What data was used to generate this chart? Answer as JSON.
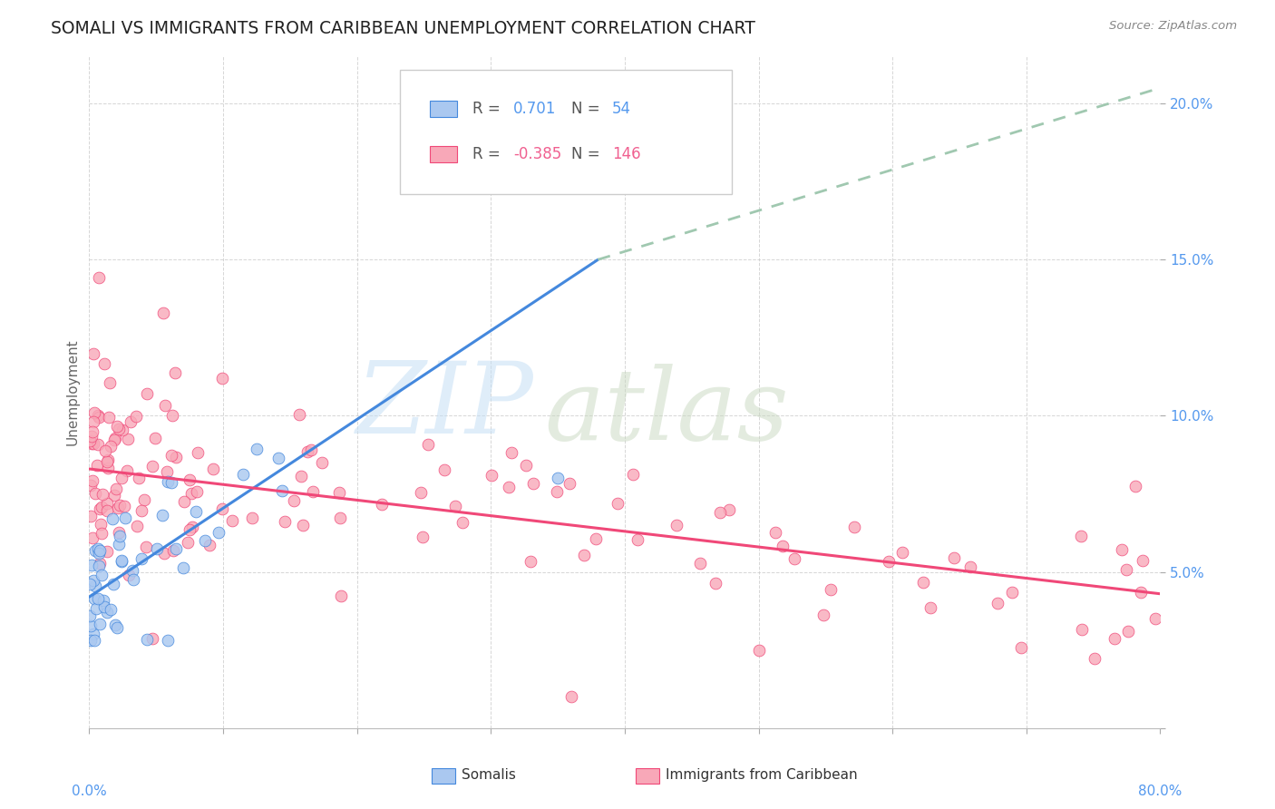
{
  "title": "SOMALI VS IMMIGRANTS FROM CARIBBEAN UNEMPLOYMENT CORRELATION CHART",
  "source": "Source: ZipAtlas.com",
  "ylabel": "Unemployment",
  "xlim": [
    0.0,
    0.8
  ],
  "ylim": [
    0.0,
    0.215
  ],
  "somali_color": "#aac8f0",
  "caribbean_color": "#f8a8b8",
  "somali_line_color": "#4488dd",
  "caribbean_line_color": "#f04878",
  "dashed_line_color": "#a0c8b0",
  "background_color": "#ffffff",
  "somali_line": {
    "x0": 0.0,
    "y0": 0.042,
    "x1": 0.38,
    "y1": 0.15
  },
  "somali_dashed_line": {
    "x0": 0.38,
    "y0": 0.15,
    "x1": 0.8,
    "y1": 0.205
  },
  "caribbean_line": {
    "x0": 0.0,
    "y0": 0.083,
    "x1": 0.8,
    "y1": 0.043
  },
  "legend_r1_text": "R = ",
  "legend_r1_val": "0.701",
  "legend_r1_n_text": "N = ",
  "legend_r1_n_val": "54",
  "legend_r2_text": "R = ",
  "legend_r2_val": "-0.385",
  "legend_r2_n_text": "N = ",
  "legend_r2_n_val": "146",
  "accent_color": "#5599ee",
  "accent_pink": "#f06090"
}
